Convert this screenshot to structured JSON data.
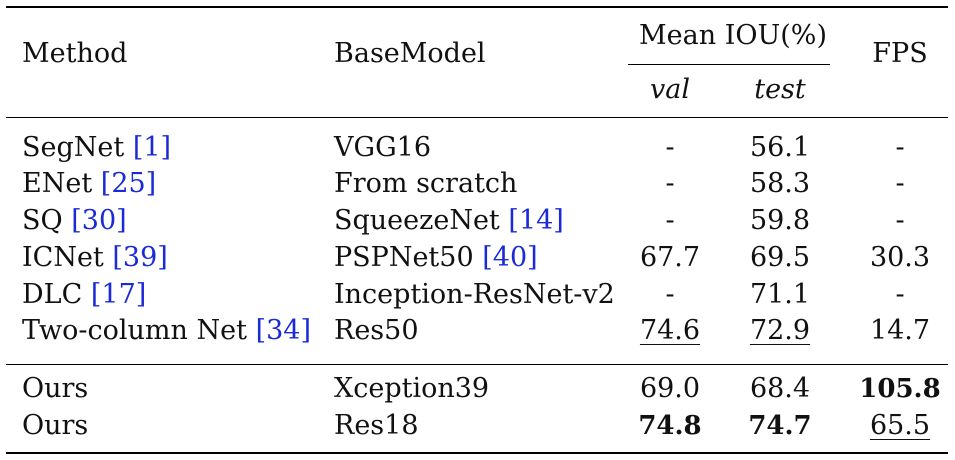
{
  "table": {
    "headers": {
      "method": "Method",
      "basemodel": "BaseModel",
      "mean_iou": "Mean IOU(%)",
      "val": "val",
      "test": "test",
      "fps": "FPS"
    },
    "rows": [
      {
        "method": "SegNet",
        "method_cite": "1",
        "base": "VGG16",
        "base_cite": "",
        "val": "-",
        "test": "56.1",
        "fps": "-"
      },
      {
        "method": "ENet",
        "method_cite": "25",
        "base": "From scratch",
        "base_cite": "",
        "val": "-",
        "test": "58.3",
        "fps": "-"
      },
      {
        "method": "SQ",
        "method_cite": "30",
        "base": "SqueezeNet",
        "base_cite": "14",
        "val": "-",
        "test": "59.8",
        "fps": "-"
      },
      {
        "method": "ICNet",
        "method_cite": "39",
        "base": "PSPNet50",
        "base_cite": "40",
        "val": "67.7",
        "test": "69.5",
        "fps": "30.3"
      },
      {
        "method": "DLC",
        "method_cite": "17",
        "base": "Inception-ResNet-v2",
        "base_cite": "",
        "val": "-",
        "test": "71.1",
        "fps": "-"
      },
      {
        "method": "Two-column Net",
        "method_cite": "34",
        "base": "Res50",
        "base_cite": "",
        "val": "74.6",
        "test": "72.9",
        "fps": "14.7"
      }
    ],
    "ours_rows": [
      {
        "method": "Ours",
        "base": "Xception39",
        "val": "69.0",
        "test": "68.4",
        "fps": "105.8"
      },
      {
        "method": "Ours",
        "base": "Res18",
        "val": "74.8",
        "test": "74.7",
        "fps": "65.5"
      }
    ]
  }
}
